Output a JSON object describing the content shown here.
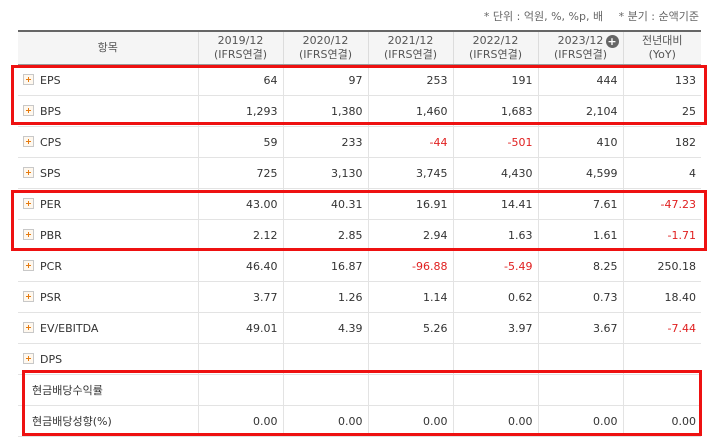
{
  "units": {
    "unit_note": "* 단위 : 억원, %, %p, 배",
    "period_note": "* 분기 : 순액기준"
  },
  "header": {
    "item_label": "항목",
    "columns": [
      {
        "year": "2019/12",
        "basis": "(IFRS연결)"
      },
      {
        "year": "2020/12",
        "basis": "(IFRS연결)"
      },
      {
        "year": "2021/12",
        "basis": "(IFRS연결)"
      },
      {
        "year": "2022/12",
        "basis": "(IFRS연결)"
      },
      {
        "year": "2023/12",
        "basis": "(IFRS연결)"
      }
    ],
    "yoy_label": "전년대비",
    "yoy_sub": "(YoY)",
    "expand_icon": "plus-circle-icon"
  },
  "rows": [
    {
      "label": "EPS",
      "values": [
        "64",
        "97",
        "253",
        "191",
        "444",
        "133"
      ]
    },
    {
      "label": "BPS",
      "values": [
        "1,293",
        "1,380",
        "1,460",
        "1,683",
        "2,104",
        "25"
      ]
    },
    {
      "label": "CPS",
      "values": [
        "59",
        "233",
        "-44",
        "-501",
        "410",
        "182"
      ]
    },
    {
      "label": "SPS",
      "values": [
        "725",
        "3,130",
        "3,745",
        "4,430",
        "4,599",
        "4"
      ]
    },
    {
      "label": "PER",
      "values": [
        "43.00",
        "40.31",
        "16.91",
        "14.41",
        "7.61",
        "-47.23"
      ]
    },
    {
      "label": "PBR",
      "values": [
        "2.12",
        "2.85",
        "2.94",
        "1.63",
        "1.61",
        "-1.71"
      ]
    },
    {
      "label": "PCR",
      "values": [
        "46.40",
        "16.87",
        "-96.88",
        "-5.49",
        "8.25",
        "250.18"
      ]
    },
    {
      "label": "PSR",
      "values": [
        "3.77",
        "1.26",
        "1.14",
        "0.62",
        "0.73",
        "18.40"
      ]
    },
    {
      "label": "EV/EBITDA",
      "values": [
        "49.01",
        "4.39",
        "5.26",
        "3.97",
        "3.67",
        "-7.44"
      ]
    },
    {
      "label": "DPS",
      "values": [
        "",
        "",
        "",
        "",
        "",
        ""
      ]
    },
    {
      "label": "현금배당수익률",
      "values": [
        "",
        "",
        "",
        "",
        "",
        ""
      ],
      "sub": true
    },
    {
      "label": "현금배당성향(%)",
      "values": [
        "0.00",
        "0.00",
        "0.00",
        "0.00",
        "0.00",
        "0.00"
      ],
      "sub": true
    }
  ]
}
